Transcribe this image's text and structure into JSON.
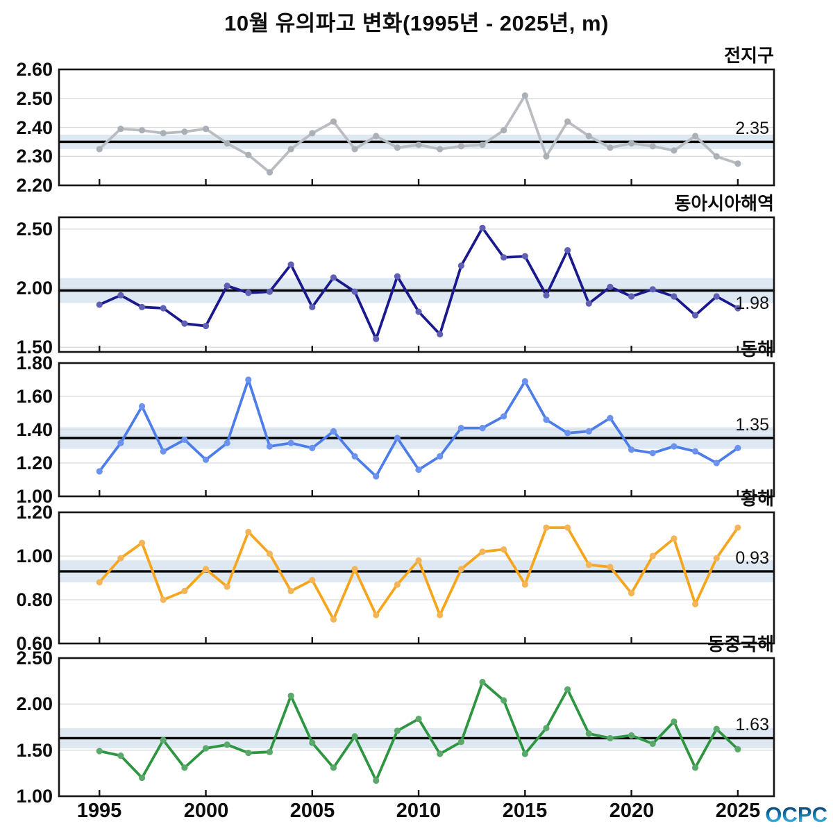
{
  "page_title": "10월 유의파고 변화(1995년 - 2025년, m)",
  "watermark": {
    "text": "OCPC"
  },
  "x_axis": {
    "tick_years": [
      1995,
      2000,
      2005,
      2010,
      2015,
      2020,
      2025
    ],
    "domain": [
      1993.1,
      2026.7
    ]
  },
  "years": [
    1995,
    1996,
    1997,
    1998,
    1999,
    2000,
    2001,
    2002,
    2003,
    2004,
    2005,
    2006,
    2007,
    2008,
    2009,
    2010,
    2011,
    2012,
    2013,
    2014,
    2015,
    2016,
    2017,
    2018,
    2019,
    2020,
    2021,
    2022,
    2023,
    2024,
    2025
  ],
  "chart_data": [
    {
      "type": "line",
      "region": "전지구",
      "mean": 2.35,
      "mean_label": "2.35",
      "mean_label_position": "above",
      "band_halfwidth": 0.025,
      "ylim": [
        2.2,
        2.6
      ],
      "yticks": [
        2.2,
        2.3,
        2.4,
        2.5,
        2.6
      ],
      "line_color": "#b9bdc2",
      "marker_color": "#aab0b6",
      "values": [
        2.325,
        2.395,
        2.39,
        2.38,
        2.385,
        2.395,
        2.345,
        2.305,
        2.245,
        2.325,
        2.38,
        2.42,
        2.325,
        2.37,
        2.33,
        2.34,
        2.325,
        2.335,
        2.34,
        2.39,
        2.51,
        2.3,
        2.42,
        2.37,
        2.33,
        2.345,
        2.335,
        2.32,
        2.37,
        2.3,
        2.275
      ]
    },
    {
      "type": "line",
      "region": "동아시아해역",
      "mean": 1.98,
      "mean_label": "1.98",
      "mean_label_position": "below",
      "band_halfwidth": 0.105,
      "ylim": [
        1.46,
        2.6
      ],
      "yticks": [
        1.5,
        2.0,
        2.5
      ],
      "line_color": "#1a1a8e",
      "marker_color": "#5f5fb3",
      "values": [
        1.86,
        1.94,
        1.84,
        1.83,
        1.7,
        1.68,
        2.02,
        1.96,
        1.97,
        2.2,
        1.84,
        2.09,
        1.97,
        1.57,
        2.1,
        1.8,
        1.61,
        2.19,
        2.51,
        2.26,
        2.27,
        1.94,
        2.32,
        1.87,
        2.01,
        1.93,
        1.99,
        1.93,
        1.77,
        1.93,
        1.83
      ]
    },
    {
      "type": "line",
      "region": "동해",
      "mean": 1.35,
      "mean_label": "1.35",
      "mean_label_position": "above",
      "band_halfwidth": 0.065,
      "ylim": [
        1.0,
        1.8
      ],
      "yticks": [
        1.0,
        1.2,
        1.4,
        1.6,
        1.8
      ],
      "line_color": "#4d7de8",
      "marker_color": "#6b92ee",
      "values": [
        1.15,
        1.32,
        1.54,
        1.27,
        1.34,
        1.22,
        1.32,
        1.7,
        1.3,
        1.32,
        1.29,
        1.39,
        1.24,
        1.12,
        1.35,
        1.16,
        1.24,
        1.41,
        1.41,
        1.48,
        1.69,
        1.46,
        1.38,
        1.39,
        1.47,
        1.28,
        1.26,
        1.3,
        1.27,
        1.2,
        1.29
      ]
    },
    {
      "type": "line",
      "region": "황해",
      "mean": 0.93,
      "mean_label": "0.93",
      "mean_label_position": "above",
      "band_halfwidth": 0.05,
      "ylim": [
        0.6,
        1.2
      ],
      "yticks": [
        0.6,
        0.8,
        1.0,
        1.2
      ],
      "line_color": "#f7a51c",
      "marker_color": "#f3b45a",
      "values": [
        0.88,
        0.99,
        1.06,
        0.8,
        0.84,
        0.94,
        0.86,
        1.11,
        1.01,
        0.84,
        0.89,
        0.71,
        0.94,
        0.73,
        0.87,
        0.98,
        0.73,
        0.94,
        1.02,
        1.03,
        0.87,
        1.13,
        1.13,
        0.96,
        0.95,
        0.83,
        1.0,
        1.08,
        0.78,
        0.99,
        1.13
      ]
    },
    {
      "type": "line",
      "region": "동중국해",
      "mean": 1.63,
      "mean_label": "1.63",
      "mean_label_position": "above",
      "band_halfwidth": 0.11,
      "ylim": [
        1.0,
        2.5
      ],
      "yticks": [
        1.0,
        1.5,
        2.0,
        2.5
      ],
      "line_color": "#2e9641",
      "marker_color": "#5aa96a",
      "values": [
        1.49,
        1.44,
        1.2,
        1.61,
        1.31,
        1.52,
        1.56,
        1.47,
        1.48,
        2.09,
        1.58,
        1.31,
        1.65,
        1.17,
        1.71,
        1.84,
        1.46,
        1.59,
        2.24,
        2.04,
        1.46,
        1.74,
        2.16,
        1.68,
        1.63,
        1.66,
        1.57,
        1.81,
        1.31,
        1.73,
        1.51
      ]
    }
  ]
}
